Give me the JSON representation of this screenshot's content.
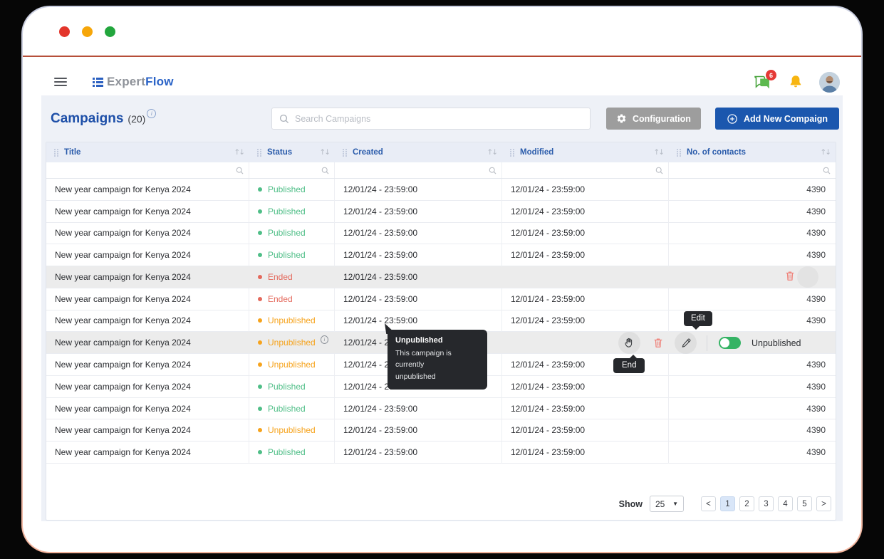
{
  "titlebar": {
    "dot_colors": [
      "#e3352b",
      "#f6a609",
      "#22a63d"
    ]
  },
  "nav": {
    "logo_gray": "Expert",
    "logo_blue": "Flow",
    "chat_badge": "6"
  },
  "page": {
    "title": "Campaigns",
    "count": "(20)"
  },
  "toolbar": {
    "search_placeholder": "Search Campaigns",
    "configuration": "Configuration",
    "add_new": "Add New Compaign"
  },
  "table": {
    "columns": [
      "Title",
      "Status",
      "Created",
      "Modified",
      "No. of contacts"
    ],
    "status_colors": {
      "Published": "#4fbe87",
      "Ended": "#e4695c",
      "Unpublished": "#f6a31c"
    },
    "rows": [
      {
        "title": "New year campaign for Kenya 2024",
        "status": "Published",
        "created": "12/01/24 - 23:59:00",
        "modified": "12/01/24 - 23:59:00",
        "contacts": "4390",
        "variant": "normal"
      },
      {
        "title": "New year campaign for Kenya 2024",
        "status": "Published",
        "created": "12/01/24 - 23:59:00",
        "modified": "12/01/24 - 23:59:00",
        "contacts": "4390",
        "variant": "normal"
      },
      {
        "title": "New year campaign for Kenya 2024",
        "status": "Published",
        "created": "12/01/24 - 23:59:00",
        "modified": "12/01/24 - 23:59:00",
        "contacts": "4390",
        "variant": "normal"
      },
      {
        "title": "New year campaign for Kenya 2024",
        "status": "Published",
        "created": "12/01/24 - 23:59:00",
        "modified": "12/01/24 - 23:59:00",
        "contacts": "4390",
        "variant": "normal"
      },
      {
        "title": "New year campaign for Kenya 2024",
        "status": "Ended",
        "created": "12/01/24 - 23:59:00",
        "modified": "",
        "contacts": "",
        "variant": "selected-trash"
      },
      {
        "title": "New year campaign for Kenya 2024",
        "status": "Ended",
        "created": "12/01/24 - 23:59:00",
        "modified": "12/01/24 - 23:59:00",
        "contacts": "4390",
        "variant": "normal"
      },
      {
        "title": "New year campaign for Kenya 2024",
        "status": "Unpublished",
        "created": "12/01/24 - 23:59:00",
        "modified": "12/01/24 - 23:59:00",
        "contacts": "4390",
        "variant": "normal"
      },
      {
        "title": "New year campaign for Kenya 2024",
        "status": "Unpublished",
        "created": "12/01/24 - 23:59:00",
        "modified": "",
        "contacts": "",
        "variant": "hover-actions",
        "info": true
      },
      {
        "title": "New year campaign for Kenya 2024",
        "status": "Unpublished",
        "created": "12/01/24 - 23:59:00",
        "modified": "12/01/24 - 23:59:00",
        "contacts": "4390",
        "variant": "normal"
      },
      {
        "title": "New year campaign for Kenya 2024",
        "status": "Published",
        "created": "12/01/24 - 23:59:00",
        "modified": "12/01/24 - 23:59:00",
        "contacts": "4390",
        "variant": "normal"
      },
      {
        "title": "New year campaign for Kenya 2024",
        "status": "Published",
        "created": "12/01/24 - 23:59:00",
        "modified": "12/01/24 - 23:59:00",
        "contacts": "4390",
        "variant": "normal"
      },
      {
        "title": "New year campaign for Kenya 2024",
        "status": "Unpublished",
        "created": "12/01/24 - 23:59:00",
        "modified": "12/01/24 - 23:59:00",
        "contacts": "4390",
        "variant": "normal"
      },
      {
        "title": "New year campaign for Kenya 2024",
        "status": "Published",
        "created": "12/01/24 - 23:59:00",
        "modified": "12/01/24 - 23:59:00",
        "contacts": "4390",
        "variant": "normal"
      }
    ]
  },
  "actions": {
    "toggle_label": "Unpublished"
  },
  "tooltips": {
    "status": {
      "title": "Unpublished",
      "body": [
        "This campaign is currently",
        "unpublished"
      ]
    },
    "edit": "Edit",
    "end": "End"
  },
  "pagination": {
    "show": "Show",
    "page_size": "25",
    "prev": "<",
    "pages": [
      "1",
      "2",
      "3",
      "4",
      "5"
    ],
    "active": "1",
    "next": ">"
  }
}
